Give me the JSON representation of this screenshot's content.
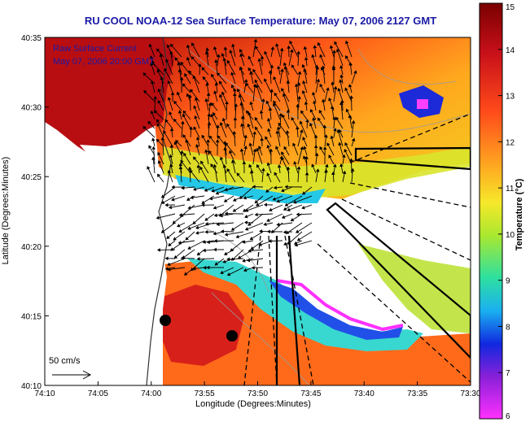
{
  "title": "RU COOL  NOAA-12  Sea Surface Temperature:  May 07, 2006 2127 GMT",
  "overlay": {
    "line1": "Raw Surface Current",
    "line2": "May 07, 2006 20:00 GMT"
  },
  "scale": {
    "label": "50 cm/s"
  },
  "axes": {
    "xlabel": "Longitude (Degrees:Minutes)",
    "ylabel": "Latitude (Degrees:Minutes)",
    "x_ticks": [
      "74:10",
      "74:05",
      "74:00",
      "73:55",
      "73:50",
      "73:45",
      "73:40",
      "73:35",
      "73:30"
    ],
    "y_ticks": [
      "40:35",
      "40:30",
      "40:25",
      "40:20",
      "40:15",
      "40:10"
    ]
  },
  "colorbar": {
    "label": "Temperature (°C)",
    "min": 6,
    "max": 15,
    "ticks": [
      "15",
      "14",
      "13",
      "12",
      "11",
      "10",
      "9",
      "8",
      "7",
      "6"
    ]
  },
  "colors": {
    "title": "#1a1aa6",
    "land": "#ffffff",
    "arrow": "#000000"
  }
}
